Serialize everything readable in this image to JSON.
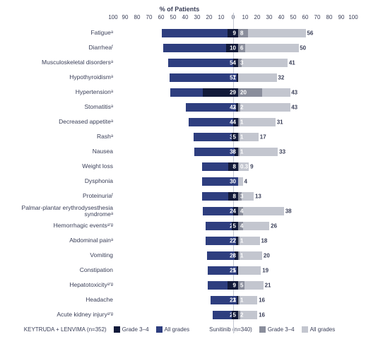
{
  "chart": {
    "type": "diverging-bar",
    "title": "% of Patients",
    "axis": {
      "min": -100,
      "max": 100,
      "ticks": [
        -100,
        -90,
        -80,
        -70,
        -60,
        -50,
        -40,
        -30,
        -20,
        -10,
        0,
        10,
        20,
        30,
        40,
        50,
        60,
        70,
        80,
        90,
        100
      ]
    },
    "colors": {
      "left_all": "#2e3e7f",
      "left_g34": "#121a3a",
      "right_all": "#c3c6cf",
      "right_g34": "#8a8e9c",
      "text": "#3a3f58"
    },
    "legend": {
      "left_title": "KEYTRUDA + LENVIMA (n=352)",
      "right_title": "Sunitinib (n=340)",
      "g34": "Grade 3–4",
      "all": "All grades"
    },
    "rows": [
      {
        "label": "Fatigueᵃ",
        "l_all": 63,
        "l_g34": 9,
        "r_all": 56,
        "r_g34": 8
      },
      {
        "label": "Diarrheaᶠ",
        "l_all": 62,
        "l_g34": 10,
        "r_all": 50,
        "r_g34": 6
      },
      {
        "label": "Musculoskeletal disordersᵃ",
        "l_all": 58,
        "l_g34": 4,
        "r_all": 41,
        "r_g34": 3
      },
      {
        "label": "Hypothyroidismᵃ",
        "l_all": 57,
        "l_g34": 1,
        "r_all": 32,
        "r_g34": 0
      },
      {
        "label": "Hypertensionᵃ",
        "l_all": 56,
        "l_g34": 29,
        "r_all": 43,
        "r_g34": 20
      },
      {
        "label": "Stomatitisᵃ",
        "l_all": 43,
        "l_g34": 2,
        "r_all": 43,
        "r_g34": 2
      },
      {
        "label": "Decreased appetiteᵃ",
        "l_all": 41,
        "l_g34": 4,
        "r_all": 31,
        "r_g34": 1
      },
      {
        "label": "Rashᵃ",
        "l_all": 37,
        "l_g34": 5,
        "r_all": 17,
        "r_g34": 1
      },
      {
        "label": "Nausea",
        "l_all": 36,
        "l_g34": 3,
        "r_all": 33,
        "r_g34": 1
      },
      {
        "label": "Weight loss",
        "l_all": 30,
        "l_g34": 8,
        "r_all": 9,
        "r_g34": 0.3
      },
      {
        "label": "Dysphonia",
        "l_all": 30,
        "l_g34": 0,
        "r_all": 4,
        "r_g34": 0
      },
      {
        "label": "Proteinuriaᶠ",
        "l_all": 30,
        "l_g34": 8,
        "r_all": 13,
        "r_g34": 3
      },
      {
        "label": "Palmar-plantar erythrodysesthesia syndromeᵃ",
        "l_all": 29,
        "l_g34": 4,
        "r_all": 38,
        "r_g34": 4
      },
      {
        "label": "Hemorrhagic eventsᵃ’ᵍ",
        "l_all": 27,
        "l_g34": 5,
        "r_all": 26,
        "r_g34": 4
      },
      {
        "label": "Abdominal painᵃ",
        "l_all": 27,
        "l_g34": 2,
        "r_all": 18,
        "r_g34": 1
      },
      {
        "label": "Vomiting",
        "l_all": 26,
        "l_g34": 3,
        "r_all": 20,
        "r_g34": 1
      },
      {
        "label": "Constipation",
        "l_all": 25,
        "l_g34": 1,
        "r_all": 19,
        "r_g34": 0
      },
      {
        "label": "Hepatotoxicityᵃ’ᵍ",
        "l_all": 25,
        "l_g34": 9,
        "r_all": 21,
        "r_g34": 5
      },
      {
        "label": "Headache",
        "l_all": 23,
        "l_g34": 1,
        "r_all": 16,
        "r_g34": 1
      },
      {
        "label": "Acute kidney injuryᵃ’ᵍ",
        "l_all": 21,
        "l_g34": 5,
        "r_all": 16,
        "r_g34": 2
      }
    ]
  }
}
